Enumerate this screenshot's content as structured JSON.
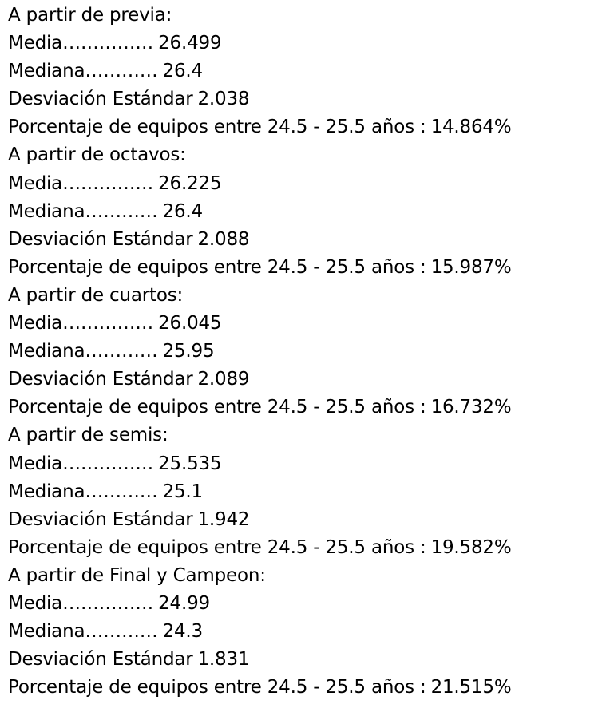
{
  "sections": [
    {
      "heading": "A partir de previa:",
      "media_label": "Media……………",
      "media_value": "26.499",
      "mediana_label": "Mediana…………",
      "mediana_value": "26.4",
      "desviacion_label": "Desviación Estándar",
      "desviacion_value": "2.038",
      "porcentaje_label": "Porcentaje de equipos entre 24.5 - 25.5 años :",
      "porcentaje_value": "14.864%"
    },
    {
      "heading": "A partir de octavos:",
      "media_label": "Media……………",
      "media_value": "26.225",
      "mediana_label": "Mediana…………",
      "mediana_value": "26.4",
      "desviacion_label": "Desviación Estándar",
      "desviacion_value": "2.088",
      "porcentaje_label": "Porcentaje de equipos entre 24.5 - 25.5 años :",
      "porcentaje_value": "15.987%"
    },
    {
      "heading": "A partir de cuartos:",
      "media_label": "Media……………",
      "media_value": "26.045",
      "mediana_label": "Mediana…………",
      "mediana_value": "25.95",
      "desviacion_label": "Desviación Estándar",
      "desviacion_value": "2.089",
      "porcentaje_label": "Porcentaje de equipos entre 24.5 - 25.5 años :",
      "porcentaje_value": "16.732%"
    },
    {
      "heading": "A partir de semis:",
      "media_label": "Media……………",
      "media_value": "25.535",
      "mediana_label": "Mediana…………",
      "mediana_value": "25.1",
      "desviacion_label": "Desviación Estándar",
      "desviacion_value": "1.942",
      "porcentaje_label": "Porcentaje de equipos entre 24.5 - 25.5 años :",
      "porcentaje_value": "19.582%"
    },
    {
      "heading": "A partir de Final y Campeon:",
      "media_label": "Media……………",
      "media_value": "24.99",
      "mediana_label": "Mediana…………",
      "mediana_value": "24.3",
      "desviacion_label": "Desviación Estándar",
      "desviacion_value": "1.831",
      "porcentaje_label": "Porcentaje de equipos entre 24.5 - 25.5 años :",
      "porcentaje_value": "21.515%"
    }
  ]
}
